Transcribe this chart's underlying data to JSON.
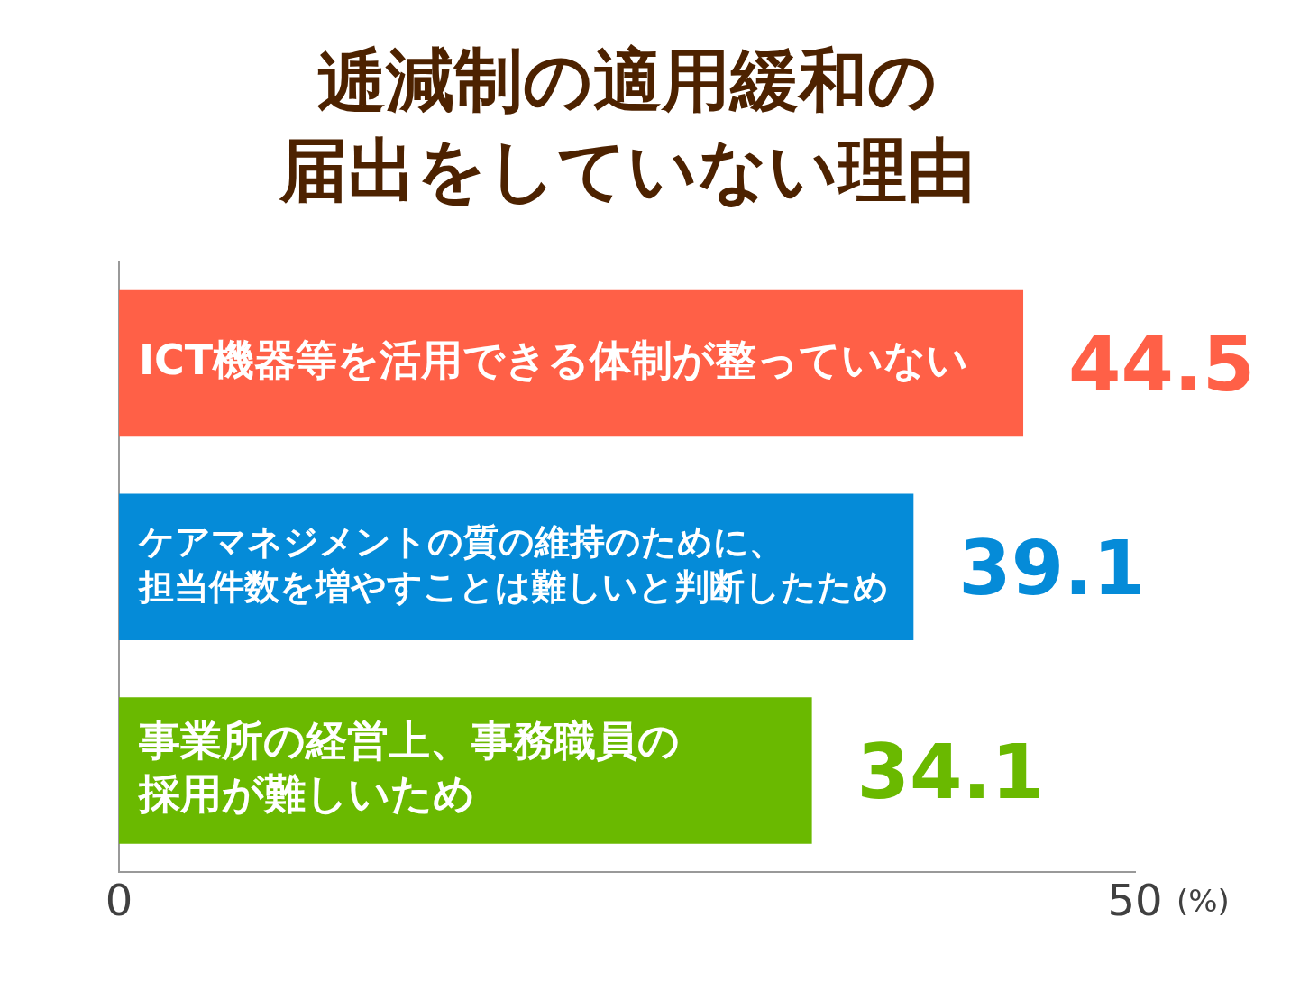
{
  "chart_data": {
    "type": "bar",
    "orientation": "horizontal",
    "title": "逓減制の適用緩和の届出をしていない理由",
    "xlabel": "(%)",
    "categories": [
      "ICT機器等を活用できる体制が整っていない",
      "ケアマネジメントの質の維持のために、担当件数を増やすことは難しいと判断したため",
      "事業所の経営上、事務職員の採用が難しいため"
    ],
    "values": [
      44.5,
      39.1,
      34.1
    ],
    "colors": [
      "#ff6047",
      "#058bd8",
      "#6ab900"
    ],
    "xlim": [
      0,
      50
    ],
    "xticks": [
      0,
      50
    ],
    "data_labels": true
  }
}
